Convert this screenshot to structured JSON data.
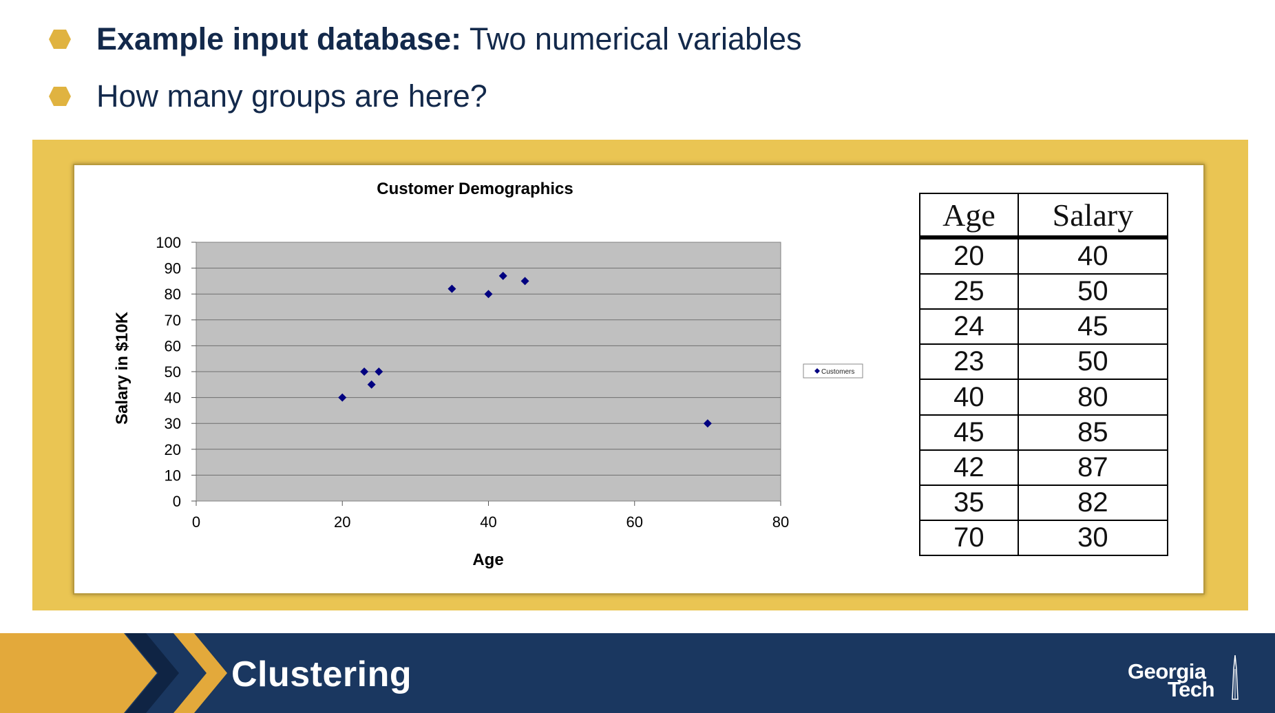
{
  "bullets": [
    {
      "bold": "Example input database:",
      "text": " Two numerical variables"
    },
    {
      "bold": "",
      "text": "How many groups are here?"
    }
  ],
  "colors": {
    "navy": "#13294b",
    "gold": "#eac553",
    "bullet_gold": "#e0b340",
    "plot_area": "#c0c0c0",
    "marker": "#000080",
    "footer": "#1a3760"
  },
  "chart_data": {
    "type": "scatter",
    "title": "Customer Demographics",
    "xlabel": "Age",
    "ylabel": "Salary in $10K",
    "xlim": [
      0,
      80
    ],
    "ylim": [
      0,
      100
    ],
    "xticks": [
      0,
      20,
      40,
      60,
      80
    ],
    "yticks": [
      0,
      10,
      20,
      30,
      40,
      50,
      60,
      70,
      80,
      90,
      100
    ],
    "grid": "horizontal",
    "legend": "right",
    "series": [
      {
        "name": "Customers",
        "x": [
          20,
          25,
          24,
          23,
          40,
          45,
          42,
          35,
          70
        ],
        "y": [
          40,
          50,
          45,
          50,
          80,
          85,
          87,
          82,
          30
        ]
      }
    ]
  },
  "table": {
    "headers": [
      "Age",
      "Salary"
    ],
    "rows": [
      [
        "20",
        "40"
      ],
      [
        "25",
        "50"
      ],
      [
        "24",
        "45"
      ],
      [
        "23",
        "50"
      ],
      [
        "40",
        "80"
      ],
      [
        "45",
        "85"
      ],
      [
        "42",
        "87"
      ],
      [
        "35",
        "82"
      ],
      [
        "70",
        "30"
      ]
    ]
  },
  "footer": {
    "title": "Clustering",
    "logo_line1": "Georgia",
    "logo_line2": "Tech"
  }
}
